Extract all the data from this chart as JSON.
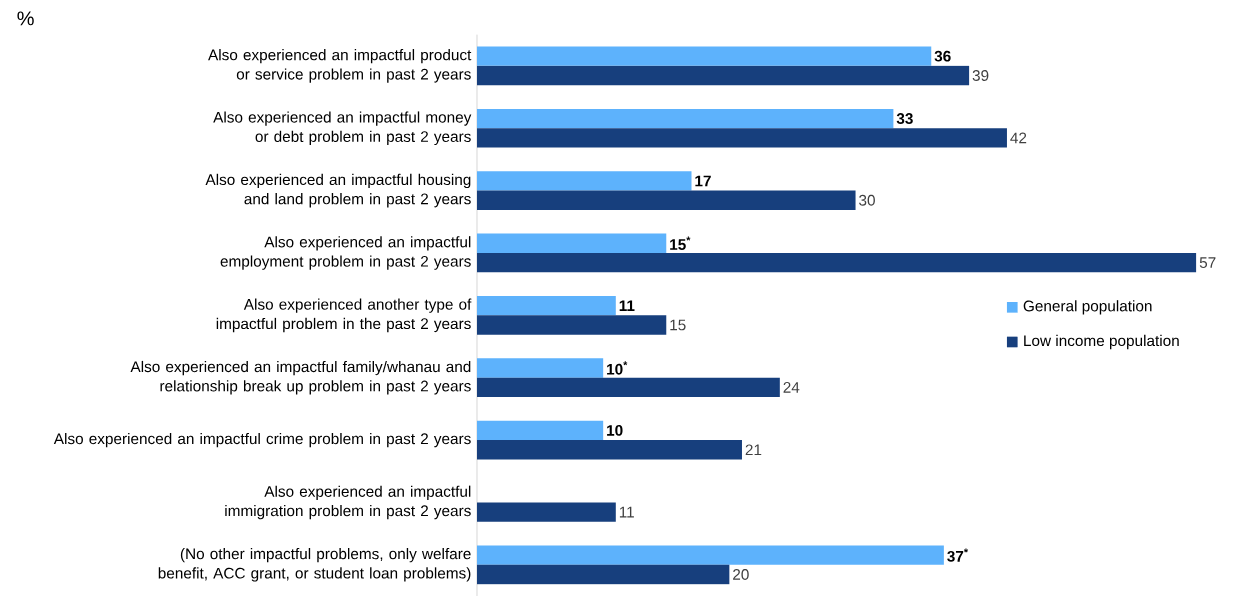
{
  "chart_data": {
    "type": "bar",
    "orientation": "horizontal",
    "ylabel": "%",
    "categories": [
      "Also experienced an impactful product or service problem in past 2 years",
      "Also experienced an impactful money or debt problem in past 2 years",
      "Also experienced an impactful housing and land problem in past 2 years",
      "Also experienced an impactful employment problem in past 2 years",
      "Also experienced another type of impactful problem in the past 2 years",
      "Also experienced an impactful family/whanau and relationship break up problem in past 2 years",
      "Also experienced an impactful crime problem in past 2 years",
      "Also experienced an impactful immigration problem in past 2 years",
      "(No other impactful problems, only welfare benefit, ACC grant, or student loan problems)"
    ],
    "series": [
      {
        "name": "General population",
        "color": "#5db2fc",
        "values": [
          36,
          33,
          17,
          15,
          11,
          10,
          10,
          null,
          37
        ],
        "value_labels": [
          "36",
          "33",
          "17",
          "15$^{*}$",
          "11",
          "10$^{*}$",
          "10",
          null,
          "37$^{*}$"
        ]
      },
      {
        "name": "Low income population",
        "color": "#173f7d",
        "values": [
          39,
          42,
          30,
          57,
          15,
          24,
          21,
          11,
          20
        ],
        "value_labels": [
          "39",
          "42",
          "30",
          "57",
          "15",
          "24",
          "21",
          "11",
          "20"
        ]
      }
    ],
    "tick_labels": "y",
    "legend": "right"
  }
}
